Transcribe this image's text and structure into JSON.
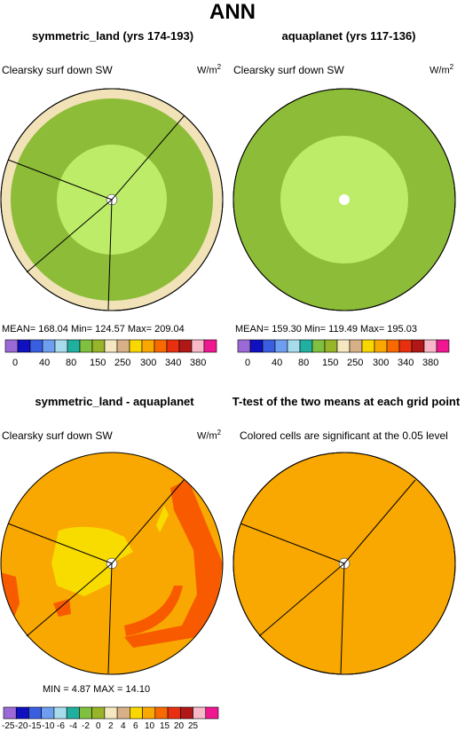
{
  "title": "ANN",
  "panels": [
    {
      "title": "symmetric_land (yrs 174-193)",
      "variable": "Clearsky surf down SW",
      "units": "W/m",
      "units_exp": "2",
      "stats": "MEAN= 168.04   Min= 124.57   Max= 209.04"
    },
    {
      "title": "aquaplanet (yrs 117-136)",
      "variable": "Clearsky surf down SW",
      "units": "W/m",
      "units_exp": "2",
      "stats": "MEAN= 159.30   Min= 119.49   Max= 195.03"
    },
    {
      "title": "symmetric_land - aquaplanet",
      "variable": "Clearsky surf down SW",
      "units": "W/m",
      "units_exp": "2",
      "stats": "MIN =      4.87  MAX =     14.10"
    },
    {
      "title": "T-test of the two means at each grid point",
      "variable": "Colored cells are significant at the 0.05 level"
    }
  ],
  "colorbar_top": {
    "colors": [
      "#9c6ad6",
      "#1010c0",
      "#3a5ee0",
      "#6e9ef0",
      "#a8dcec",
      "#20b0a0",
      "#80c040",
      "#98b428",
      "#f5e8c0",
      "#d8b088",
      "#f8d800",
      "#f8a800",
      "#f86a00",
      "#e83010",
      "#b01818",
      "#f8b8c8",
      "#f01890"
    ],
    "labels": [
      "0",
      "40",
      "80",
      "150",
      "250",
      "300",
      "340",
      "380"
    ]
  },
  "colorbar_bottom": {
    "colors": [
      "#9c6ad6",
      "#1010c0",
      "#3a5ee0",
      "#6e9ef0",
      "#a8dcec",
      "#20b0a0",
      "#80c040",
      "#98b428",
      "#f5e8c0",
      "#d8b088",
      "#f8d800",
      "#f8a800",
      "#f86a00",
      "#e83010",
      "#b01818",
      "#f8b8c8",
      "#f01890"
    ],
    "labels": [
      "-25",
      "-20",
      "-15",
      "-10",
      "-6",
      "-4",
      "-2",
      "0",
      "2",
      "4",
      "6",
      "10",
      "15",
      "20",
      "25"
    ]
  },
  "map_colors": {
    "tan": "#f2e2b8",
    "olive": "#8cbc38",
    "lightgreen": "#bcec68",
    "orange": "#f8a800",
    "yellow": "#f8dc00",
    "redorange": "#f85a00"
  }
}
